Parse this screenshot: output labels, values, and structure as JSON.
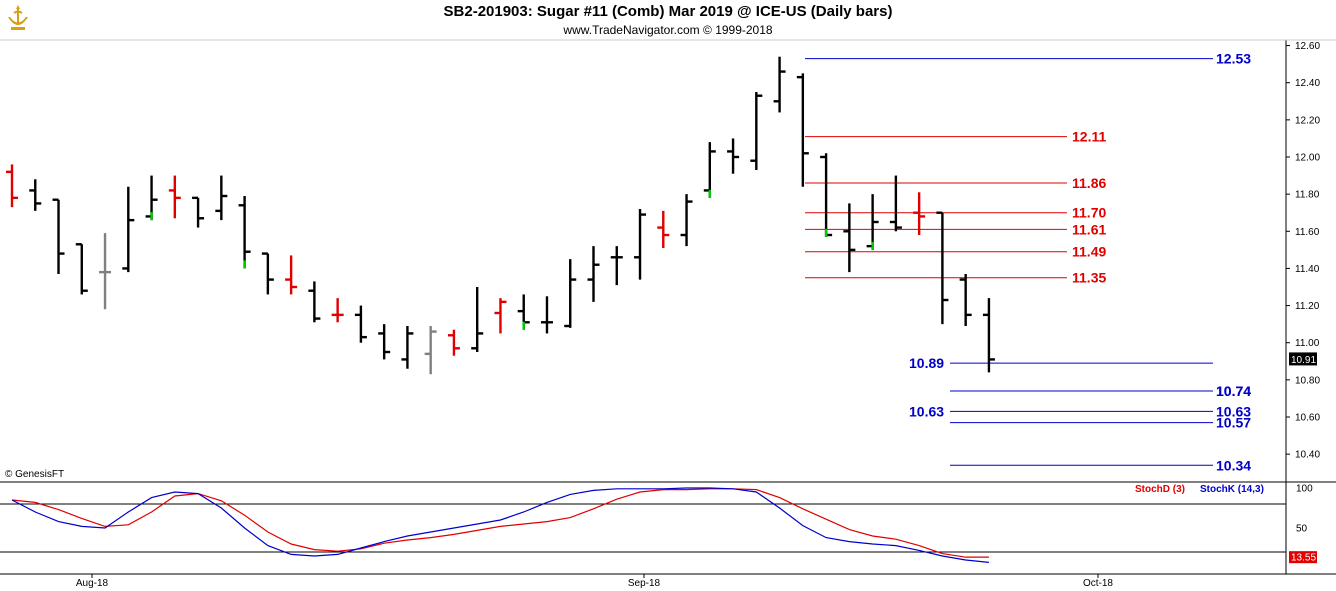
{
  "header": {
    "title": "SB2-201903:  Sugar #11 (Comb) Mar 2019 @ ICE-US  (Daily bars)",
    "subtitle": "www.TradeNavigator.com © 1999-2018",
    "copyright": "© GenesisFT"
  },
  "colors": {
    "up": "#000000",
    "down_red": "#e00000",
    "green": "#00cc00",
    "gray": "#808080",
    "level_red": "#e00000",
    "level_blue": "#0000cc"
  },
  "chart_data": [
    {
      "type": "ohlc",
      "title": "SB2-201903:  Sugar #11 (Comb) Mar 2019 @ ICE-US  (Daily bars)",
      "x_labels": [
        "Aug-18",
        "Sep-18",
        "Oct-18"
      ],
      "ylim": [
        10.25,
        12.63
      ],
      "y_ticks": [
        "12.60",
        "12.40",
        "12.20",
        "12.00",
        "11.80",
        "11.60",
        "11.40",
        "11.20",
        "11.00",
        "10.80",
        "10.60",
        "10.40"
      ],
      "last_price": "10.91",
      "bars": [
        {
          "h": 11.96,
          "l": 11.73,
          "o": 11.92,
          "c": 11.78,
          "color": "red"
        },
        {
          "h": 11.88,
          "l": 11.71,
          "o": 11.82,
          "c": 11.75,
          "color": "black"
        },
        {
          "h": 11.77,
          "l": 11.37,
          "o": 11.77,
          "c": 11.48,
          "color": "black"
        },
        {
          "h": 11.53,
          "l": 11.26,
          "o": 11.53,
          "c": 11.28,
          "color": "black"
        },
        {
          "h": 11.59,
          "l": 11.18,
          "o": 11.38,
          "c": 11.38,
          "color": "gray"
        },
        {
          "h": 11.84,
          "l": 11.38,
          "o": 11.4,
          "c": 11.66,
          "color": "black"
        },
        {
          "h": 11.9,
          "l": 11.66,
          "o": 11.68,
          "c": 11.77,
          "color": "black"
        },
        {
          "h": 11.9,
          "l": 11.67,
          "o": 11.82,
          "c": 11.78,
          "color": "red"
        },
        {
          "h": 11.78,
          "l": 11.62,
          "o": 11.78,
          "c": 11.67,
          "color": "black"
        },
        {
          "h": 11.9,
          "l": 11.66,
          "o": 11.71,
          "c": 11.79,
          "color": "black"
        },
        {
          "h": 11.79,
          "l": 11.4,
          "o": 11.74,
          "c": 11.49,
          "color": "black"
        },
        {
          "h": 11.48,
          "l": 11.26,
          "o": 11.48,
          "c": 11.34,
          "color": "black"
        },
        {
          "h": 11.47,
          "l": 11.26,
          "o": 11.34,
          "c": 11.3,
          "color": "red"
        },
        {
          "h": 11.33,
          "l": 11.11,
          "o": 11.28,
          "c": 11.13,
          "color": "black"
        },
        {
          "h": 11.24,
          "l": 11.11,
          "o": 11.15,
          "c": 11.15,
          "color": "red"
        },
        {
          "h": 11.2,
          "l": 11.0,
          "o": 11.15,
          "c": 11.03,
          "color": "black"
        },
        {
          "h": 11.1,
          "l": 10.91,
          "o": 11.05,
          "c": 10.95,
          "color": "black"
        },
        {
          "h": 11.09,
          "l": 10.86,
          "o": 10.91,
          "c": 11.05,
          "color": "black"
        },
        {
          "h": 11.09,
          "l": 10.83,
          "o": 10.94,
          "c": 11.06,
          "color": "gray"
        },
        {
          "h": 11.07,
          "l": 10.93,
          "o": 11.04,
          "c": 10.97,
          "color": "red"
        },
        {
          "h": 11.3,
          "l": 10.95,
          "o": 10.97,
          "c": 11.05,
          "color": "black"
        },
        {
          "h": 11.24,
          "l": 11.05,
          "o": 11.16,
          "c": 11.22,
          "color": "red"
        },
        {
          "h": 11.26,
          "l": 11.07,
          "o": 11.17,
          "c": 11.11,
          "color": "black"
        },
        {
          "h": 11.25,
          "l": 11.05,
          "o": 11.11,
          "c": 11.11,
          "color": "black"
        },
        {
          "h": 11.45,
          "l": 11.08,
          "o": 11.09,
          "c": 11.34,
          "color": "black"
        },
        {
          "h": 11.52,
          "l": 11.22,
          "o": 11.34,
          "c": 11.42,
          "color": "black"
        },
        {
          "h": 11.52,
          "l": 11.31,
          "o": 11.46,
          "c": 11.46,
          "color": "black"
        },
        {
          "h": 11.72,
          "l": 11.34,
          "o": 11.46,
          "c": 11.69,
          "color": "black"
        },
        {
          "h": 11.71,
          "l": 11.51,
          "o": 11.62,
          "c": 11.58,
          "color": "red"
        },
        {
          "h": 11.8,
          "l": 11.52,
          "o": 11.58,
          "c": 11.76,
          "color": "black"
        },
        {
          "h": 12.08,
          "l": 11.78,
          "o": 11.82,
          "c": 12.03,
          "color": "black"
        },
        {
          "h": 12.1,
          "l": 11.91,
          "o": 12.03,
          "c": 12.0,
          "color": "black"
        },
        {
          "h": 12.35,
          "l": 11.93,
          "o": 11.98,
          "c": 12.33,
          "color": "black"
        },
        {
          "h": 12.54,
          "l": 12.24,
          "o": 12.3,
          "c": 12.46,
          "color": "black"
        },
        {
          "h": 12.45,
          "l": 11.84,
          "o": 12.43,
          "c": 12.02,
          "color": "black"
        },
        {
          "h": 12.02,
          "l": 11.57,
          "o": 12.0,
          "c": 11.58,
          "color": "black"
        },
        {
          "h": 11.75,
          "l": 11.38,
          "o": 11.6,
          "c": 11.5,
          "color": "black"
        },
        {
          "h": 11.8,
          "l": 11.5,
          "o": 11.52,
          "c": 11.65,
          "color": "black"
        },
        {
          "h": 11.9,
          "l": 11.6,
          "o": 11.65,
          "c": 11.62,
          "color": "black"
        },
        {
          "h": 11.81,
          "l": 11.58,
          "o": 11.7,
          "c": 11.68,
          "color": "red"
        },
        {
          "h": 11.7,
          "l": 11.1,
          "o": 11.7,
          "c": 11.23,
          "color": "black"
        },
        {
          "h": 11.37,
          "l": 11.09,
          "o": 11.34,
          "c": 11.15,
          "color": "black"
        },
        {
          "h": 11.24,
          "l": 10.84,
          "o": 11.15,
          "c": 10.91,
          "color": "black"
        }
      ],
      "levels": [
        {
          "value": 12.53,
          "label": "12.53",
          "color": "blue",
          "x0": 0.59
        },
        {
          "value": 12.11,
          "label": "12.11",
          "color": "red",
          "x0": 0.6
        },
        {
          "value": 11.86,
          "label": "11.86",
          "color": "red",
          "x0": 0.6
        },
        {
          "value": 11.7,
          "label": "11.70",
          "color": "red",
          "x0": 0.6
        },
        {
          "value": 11.61,
          "label": "11.61",
          "color": "red",
          "x0": 0.6
        },
        {
          "value": 11.49,
          "label": "11.49",
          "color": "red",
          "x0": 0.6
        },
        {
          "value": 11.35,
          "label": "11.35",
          "color": "red",
          "x0": 0.6
        },
        {
          "value": 10.89,
          "label": "10.89",
          "color": "blue",
          "x0": 0.95,
          "x1": 0.955
        },
        {
          "value": 10.74,
          "label": "10.74",
          "color": "blue",
          "x0": 0.95
        },
        {
          "value": 10.63,
          "label": "10.63",
          "color": "blue",
          "x0": 0.95
        },
        {
          "value": 10.57,
          "label": "10.57",
          "color": "blue",
          "x0": 0.95
        },
        {
          "value": 10.34,
          "label": "10.34",
          "color": "blue",
          "x0": 0.95
        }
      ]
    },
    {
      "type": "line",
      "title": "",
      "ylim": [
        0,
        100
      ],
      "y_ticks": [
        "100",
        "50"
      ],
      "last_value": "13.55",
      "series": [
        {
          "name": "StochD (3)",
          "color": "#e00000",
          "values": [
            85,
            82,
            73,
            62,
            52,
            54,
            70,
            90,
            93,
            84,
            66,
            45,
            30,
            23,
            21,
            24,
            31,
            35,
            38,
            42,
            47,
            52,
            55,
            58,
            63,
            74,
            86,
            95,
            98,
            98,
            99,
            99,
            98,
            88,
            74,
            61,
            48,
            40,
            36,
            28,
            18,
            13.55,
            13.55
          ]
        },
        {
          "name": "StochK (14,3)",
          "color": "#0000cc",
          "values": [
            85,
            70,
            58,
            52,
            50,
            70,
            88,
            95,
            93,
            75,
            50,
            28,
            17,
            15,
            17,
            25,
            33,
            40,
            45,
            50,
            55,
            60,
            70,
            82,
            92,
            97,
            99,
            99,
            99,
            100,
            100,
            99,
            95,
            75,
            53,
            38,
            33,
            30,
            28,
            22,
            15,
            10,
            7
          ]
        }
      ]
    }
  ]
}
